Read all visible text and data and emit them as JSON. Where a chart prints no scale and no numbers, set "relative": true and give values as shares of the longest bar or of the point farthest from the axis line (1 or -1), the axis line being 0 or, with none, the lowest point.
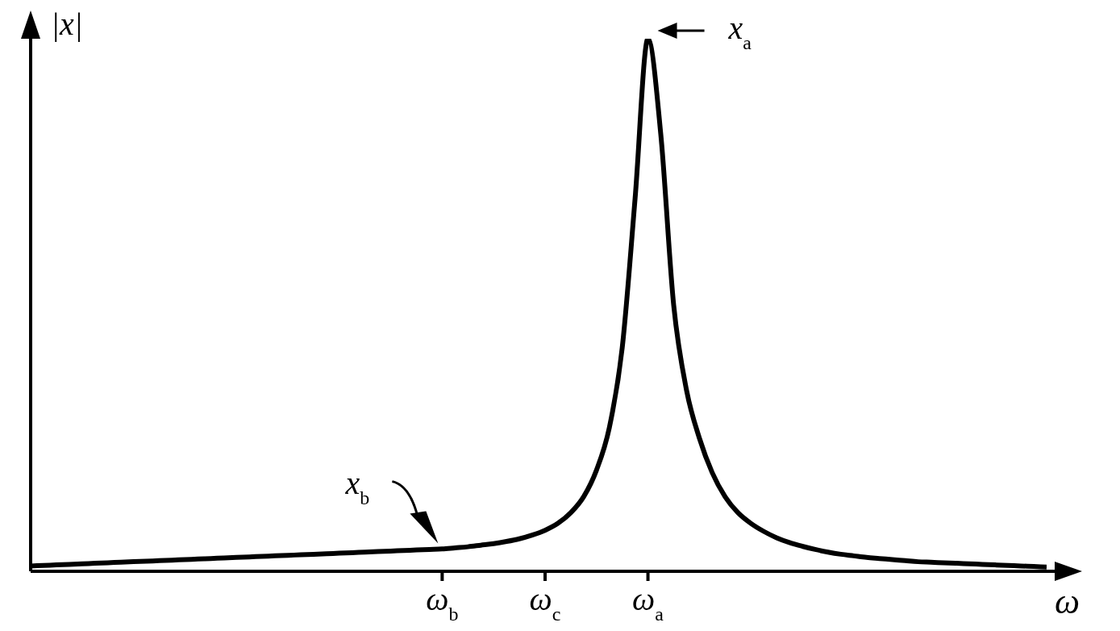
{
  "chart_data": {
    "type": "line",
    "relative": true,
    "xlabel": "ω",
    "ylabel": "|x|",
    "categories": [
      null,
      null,
      null,
      null,
      null,
      null,
      null,
      null,
      null,
      null,
      null,
      null,
      null,
      null,
      null,
      null,
      null,
      null,
      null,
      null,
      null,
      null,
      null,
      null,
      null,
      null,
      null,
      null,
      null,
      null,
      null,
      null,
      "ω$_{b}$",
      null,
      null,
      null,
      null,
      null,
      null,
      null,
      "ω$_{c}$",
      null,
      null,
      null,
      null,
      null,
      null,
      null,
      "ω$_{a}$",
      null,
      null,
      null,
      null,
      null,
      null,
      null,
      null,
      null,
      null,
      null,
      null,
      null,
      null,
      null,
      null,
      null,
      null,
      null,
      null,
      null,
      null,
      null,
      null,
      null,
      null,
      null,
      null,
      null,
      null,
      null
    ],
    "values": [
      0.01,
      0.011,
      0.012,
      0.013,
      0.014,
      0.015,
      0.016,
      0.017,
      0.018,
      0.019,
      0.02,
      0.021,
      0.022,
      0.023,
      0.024,
      0.025,
      0.026,
      0.027,
      0.028,
      0.029,
      0.03,
      0.031,
      0.032,
      0.033,
      0.034,
      0.035,
      0.036,
      0.037,
      0.038,
      0.039,
      0.04,
      0.041,
      0.042,
      0.044,
      0.046,
      0.049,
      0.052,
      0.056,
      0.061,
      0.068,
      0.077,
      0.09,
      0.11,
      0.14,
      0.19,
      0.27,
      0.42,
      0.7,
      1,
      0.82,
      0.5,
      0.34,
      0.25,
      0.185,
      0.14,
      0.11,
      0.09,
      0.075,
      0.063,
      0.054,
      0.047,
      0.041,
      0.036,
      0.032,
      0.029,
      0.026,
      0.024,
      0.022,
      0.02,
      0.018,
      0.017,
      0.016,
      0.015,
      0.014,
      0.013,
      0.012,
      0.011,
      0.01,
      0.009,
      0.008
    ],
    "color": "#000000",
    "marker": "none",
    "line_style": "solid",
    "grid": false,
    "legend": false,
    "annotations": [
      {
        "text": "x$_{a}$",
        "x": "ω$_{a}$",
        "y": 1
      },
      {
        "text": "x$_{b}$",
        "x": "ω$_{b}$",
        "y": 0.04
      }
    ]
  }
}
